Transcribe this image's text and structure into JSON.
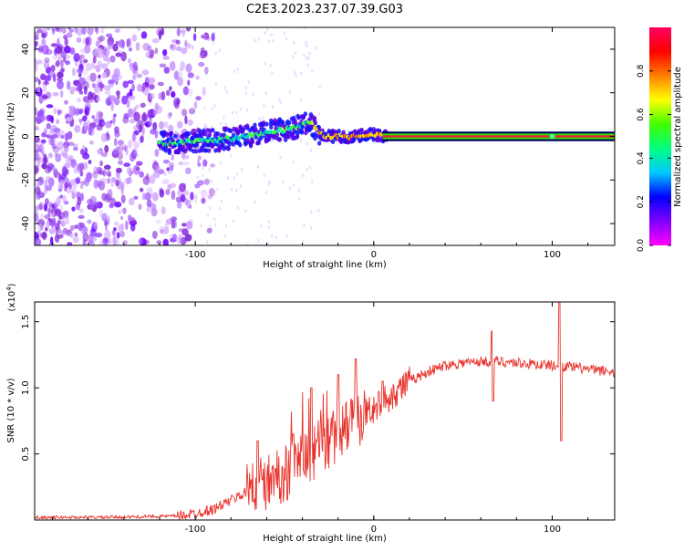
{
  "title": "C2E3.2023.237.07.39.G03",
  "colors": {
    "curve": "#e8322b",
    "trace_green": "#2fe600",
    "trace_red": "#e81a3a",
    "noise": "#8a2be2",
    "frame": "#000000"
  },
  "chart_data": [
    {
      "type": "heatmap",
      "xlabel": "Height of straight line (km)",
      "ylabel": "Frequency (Hz)",
      "xlim": [
        -190,
        135
      ],
      "ylim": [
        -50,
        50
      ],
      "xticks": [
        -100,
        0,
        100
      ],
      "yticks": [
        -40,
        -20,
        0,
        20,
        40
      ],
      "colorbar": {
        "label": "Normalized spectral amplitude",
        "range": [
          0.0,
          1.0
        ],
        "ticks": [
          0.0,
          0.2,
          0.4,
          0.6,
          0.8
        ],
        "colormap": [
          "#ff00ff",
          "#8000ff",
          "#0000ff",
          "#00c8ff",
          "#00ff80",
          "#40ff00",
          "#ffff00",
          "#ff8000",
          "#ff0000",
          "#ff0060"
        ]
      },
      "signal_trace": {
        "x": [
          -120,
          -110,
          -100,
          -90,
          -80,
          -70,
          -60,
          -50,
          -40,
          -35,
          -30,
          -25,
          -20,
          -15,
          -10,
          -5,
          0,
          5,
          10,
          50,
          100,
          135
        ],
        "frequency": [
          -3,
          -3,
          -2,
          -2,
          -1,
          0,
          2,
          3,
          5,
          6,
          1,
          0,
          0,
          -1,
          0,
          1,
          1,
          0,
          0,
          0,
          0,
          0
        ]
      },
      "noise_region": {
        "x_from": -190,
        "x_to": -100,
        "density": "high"
      }
    },
    {
      "type": "line",
      "xlabel": "Height of straight line (km)",
      "ylabel": "SNR (10 * v/v)",
      "y_multiplier": "(x10",
      "y_multiplier_exp": "4",
      "y_multiplier_close": ")",
      "xlim": [
        -190,
        135
      ],
      "ylim": [
        0,
        1.65
      ],
      "xticks": [
        -100,
        0,
        100
      ],
      "yticks": [
        0.5,
        1.0,
        1.5
      ],
      "ytick_labels": [
        "0.5",
        "1.0",
        "1.5"
      ],
      "series": [
        {
          "x": [
            -190,
            -150,
            -110,
            -100,
            -90,
            -80,
            -70,
            -60,
            -50,
            -40,
            -30,
            -20,
            -10,
            0,
            10,
            20,
            30,
            40,
            50,
            60,
            70,
            80,
            90,
            100,
            110,
            120,
            135
          ],
          "y": [
            0.02,
            0.02,
            0.03,
            0.05,
            0.08,
            0.15,
            0.22,
            0.28,
            0.35,
            0.45,
            0.55,
            0.65,
            0.75,
            0.85,
            0.95,
            1.05,
            1.12,
            1.17,
            1.19,
            1.2,
            1.2,
            1.19,
            1.18,
            1.17,
            1.16,
            1.14,
            1.12
          ]
        }
      ],
      "spikes": [
        {
          "x": -65,
          "y": 0.6
        },
        {
          "x": -45,
          "y": 0.65
        },
        {
          "x": -35,
          "y": 1.0
        },
        {
          "x": -20,
          "y": 1.1
        },
        {
          "x": -10,
          "y": 1.22
        },
        {
          "x": 5,
          "y": 1.05
        },
        {
          "x": 66,
          "y": 1.43
        },
        {
          "x": 67,
          "y": 0.9
        },
        {
          "x": 104,
          "y": 1.65
        },
        {
          "x": 105,
          "y": 0.6
        }
      ]
    }
  ]
}
